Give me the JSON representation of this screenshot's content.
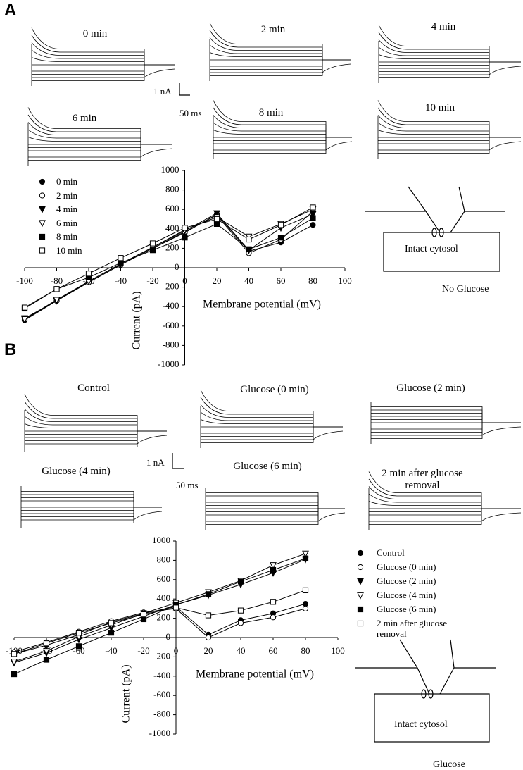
{
  "figure": {
    "panel_a": "A",
    "panel_b": "B",
    "traces_a": [
      "0 min",
      "2 min",
      "4 min",
      "6 min",
      "8 min",
      "10 min"
    ],
    "scale_a": [
      "1 nA",
      "50 ms"
    ],
    "diagram_a": [
      "Intact cytosol",
      "No Glucose"
    ],
    "traces_b": [
      "Control",
      "Glucose (0 min)",
      "Glucose (2 min)",
      "Glucose (4 min)",
      "Glucose (6 min)",
      "2 min after glucose removal"
    ],
    "scale_b": [
      "1 nA",
      "50 ms"
    ],
    "diagram_b": [
      "Intact cytosol",
      "Glucose"
    ]
  },
  "chart_data": [
    {
      "type": "line",
      "x_label": "Membrane potential (mV)",
      "y_label": "Current (pA)",
      "x": [
        -100,
        -80,
        -60,
        -40,
        -20,
        0,
        20,
        40,
        60,
        80
      ],
      "xlim": [
        -100,
        100
      ],
      "xticks": [
        -100,
        -80,
        -60,
        -40,
        -20,
        0,
        20,
        40,
        60,
        80,
        100
      ],
      "ylim": [
        -1000,
        1000
      ],
      "yticks": [
        -1000,
        -800,
        -600,
        -400,
        -200,
        0,
        200,
        400,
        600,
        800,
        1000
      ],
      "series": [
        {
          "name": "0 min",
          "color": "#000000",
          "marker": "circle-filled",
          "values": [
            -540,
            -340,
            -150,
            30,
            200,
            360,
            550,
            170,
            260,
            440
          ]
        },
        {
          "name": "2 min",
          "color": "#000000",
          "marker": "circle-open",
          "values": [
            -530,
            -340,
            -150,
            30,
            200,
            370,
            540,
            150,
            290,
            580
          ]
        },
        {
          "name": "4 min",
          "color": "#000000",
          "marker": "triangle-filled",
          "values": [
            -520,
            -340,
            -140,
            40,
            210,
            380,
            560,
            180,
            410,
            550
          ]
        },
        {
          "name": "6 min",
          "color": "#000000",
          "marker": "triangle-open",
          "values": [
            -530,
            -330,
            -140,
            40,
            210,
            390,
            520,
            320,
            450,
            600
          ]
        },
        {
          "name": "8 min",
          "color": "#000000",
          "marker": "square-filled",
          "values": [
            -420,
            -220,
            -100,
            50,
            180,
            310,
            450,
            190,
            310,
            510
          ]
        },
        {
          "name": "10 min",
          "color": "#000000",
          "marker": "square-open",
          "values": [
            -410,
            -220,
            -60,
            100,
            250,
            410,
            500,
            290,
            440,
            620
          ]
        }
      ]
    },
    {
      "type": "line",
      "x_label": "Membrane potential (mV)",
      "y_label": "Current (pA)",
      "x": [
        -100,
        -80,
        -60,
        -40,
        -20,
        0,
        20,
        40,
        60,
        80
      ],
      "xlim": [
        -100,
        100
      ],
      "xticks": [
        -100,
        -80,
        -60,
        -40,
        -20,
        0,
        20,
        40,
        60,
        80,
        100
      ],
      "ylim": [
        -1000,
        1000
      ],
      "yticks": [
        -1000,
        -800,
        -600,
        -400,
        -200,
        0,
        200,
        400,
        600,
        800,
        1000
      ],
      "series": [
        {
          "name": "Control",
          "color": "#000000",
          "marker": "circle-filled",
          "values": [
            -170,
            -80,
            30,
            160,
            250,
            320,
            30,
            180,
            250,
            350
          ]
        },
        {
          "name": "Glucose (0 min)",
          "color": "#000000",
          "marker": "circle-open",
          "values": [
            -150,
            -50,
            60,
            170,
            260,
            300,
            0,
            150,
            210,
            300
          ]
        },
        {
          "name": "Glucose (2 min)",
          "color": "#000000",
          "marker": "triangle-filled",
          "values": [
            -260,
            -160,
            -20,
            100,
            220,
            340,
            440,
            550,
            670,
            810
          ]
        },
        {
          "name": "Glucose (4 min)",
          "color": "#000000",
          "marker": "triangle-open",
          "values": [
            -250,
            -140,
            10,
            130,
            250,
            360,
            470,
            590,
            750,
            870
          ]
        },
        {
          "name": "Glucose (6 min)",
          "color": "#000000",
          "marker": "square-filled",
          "values": [
            -380,
            -230,
            -90,
            50,
            190,
            340,
            450,
            580,
            700,
            820
          ]
        },
        {
          "name": "2 min after glucose removal",
          "color": "#000000",
          "marker": "square-open",
          "values": [
            -170,
            -60,
            50,
            150,
            240,
            310,
            230,
            280,
            370,
            490
          ]
        }
      ]
    }
  ]
}
